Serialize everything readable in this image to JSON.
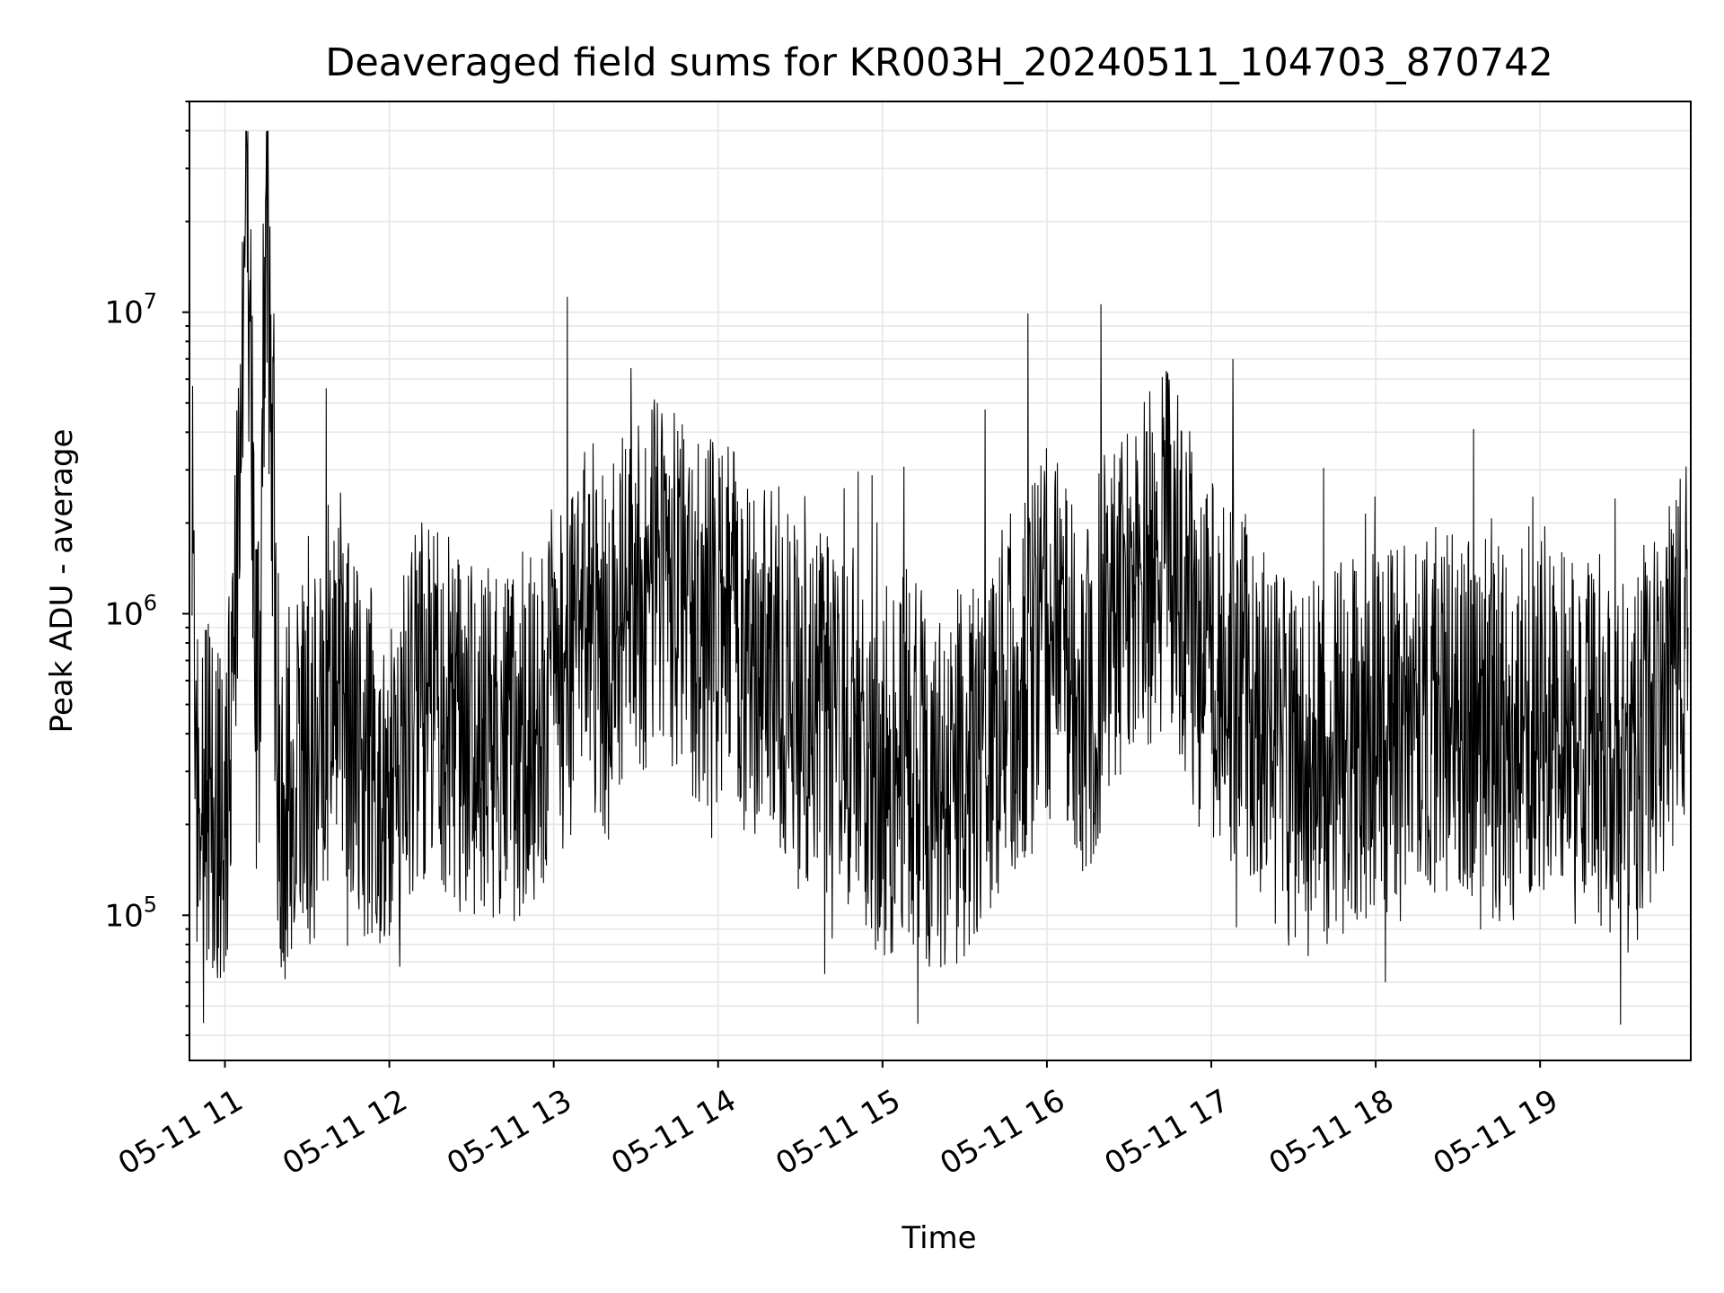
{
  "chart_data": {
    "type": "line",
    "title": "Deaveraged field sums for KR003H_20240511_104703_870742",
    "xlabel": "Time",
    "ylabel": "Peak ADU - average",
    "yscale": "log",
    "xlim": [
      "2024-05-11T10:47:03",
      "2024-05-11T19:55:00"
    ],
    "ylim": [
      33000,
      50000000
    ],
    "grid": true,
    "line_color": "#000000",
    "x_ticks": [
      "05-11 11",
      "05-11 12",
      "05-11 13",
      "05-11 14",
      "05-11 15",
      "05-11 16",
      "05-11 17",
      "05-11 18",
      "05-11 19"
    ],
    "x_tick_hours": [
      11,
      12,
      13,
      14,
      15,
      16,
      17,
      18,
      19
    ],
    "y_ticks": [
      {
        "value": 100000,
        "base": "10",
        "exp": "5"
      },
      {
        "value": 1000000,
        "base": "10",
        "exp": "6"
      },
      {
        "value": 10000000,
        "base": "10",
        "exp": "7"
      }
    ],
    "series": [
      {
        "color": "#000000",
        "x": [
          "2024-05-11T10:48",
          "2024-05-11T10:50",
          "2024-05-11T10:52",
          "2024-05-11T10:55",
          "2024-05-11T10:58",
          "2024-05-11T11:02",
          "2024-05-11T11:08",
          "2024-05-11T11:12",
          "2024-05-11T11:15",
          "2024-05-11T11:20",
          "2024-05-11T11:25",
          "2024-05-11T11:35",
          "2024-05-11T11:40",
          "2024-05-11T11:50",
          "2024-05-11T12:00",
          "2024-05-11T12:10",
          "2024-05-11T12:20",
          "2024-05-11T12:35",
          "2024-05-11T12:45",
          "2024-05-11T12:55",
          "2024-05-11T13:10",
          "2024-05-11T13:20",
          "2024-05-11T13:30",
          "2024-05-11T13:40",
          "2024-05-11T13:50",
          "2024-05-11T14:00",
          "2024-05-11T14:10",
          "2024-05-11T14:20",
          "2024-05-11T14:30",
          "2024-05-11T14:40",
          "2024-05-11T14:50",
          "2024-05-11T15:00",
          "2024-05-11T15:10",
          "2024-05-11T15:20",
          "2024-05-11T15:30",
          "2024-05-11T15:40",
          "2024-05-11T15:50",
          "2024-05-11T16:00",
          "2024-05-11T16:08",
          "2024-05-11T16:15",
          "2024-05-11T16:25",
          "2024-05-11T16:35",
          "2024-05-11T16:45",
          "2024-05-11T16:55",
          "2024-05-11T17:05",
          "2024-05-11T17:15",
          "2024-05-11T17:25",
          "2024-05-11T17:35",
          "2024-05-11T17:45",
          "2024-05-11T17:55",
          "2024-05-11T18:05",
          "2024-05-11T18:15",
          "2024-05-11T18:25",
          "2024-05-11T18:35",
          "2024-05-11T18:45",
          "2024-05-11T18:55",
          "2024-05-11T19:05",
          "2024-05-11T19:15",
          "2024-05-11T19:25",
          "2024-05-11T19:35",
          "2024-05-11T19:45",
          "2024-05-11T19:54"
        ],
        "y": [
          1000000,
          300000,
          200000,
          250000,
          200000,
          300000,
          35000000,
          250000,
          26000000,
          200000,
          300000,
          350000,
          800000,
          300000,
          300000,
          500000,
          450000,
          400000,
          400000,
          450000,
          900000,
          700000,
          1200000,
          1300000,
          1000000,
          900000,
          800000,
          700000,
          500000,
          450000,
          400000,
          300000,
          350000,
          250000,
          300000,
          400000,
          600000,
          800000,
          700000,
          500000,
          1200000,
          1300000,
          1600000,
          800000,
          600000,
          450000,
          350000,
          300000,
          350000,
          400000,
          400000,
          400000,
          500000,
          450000,
          400000,
          500000,
          450000,
          500000,
          350000,
          300000,
          550000,
          900000
        ]
      }
    ]
  }
}
